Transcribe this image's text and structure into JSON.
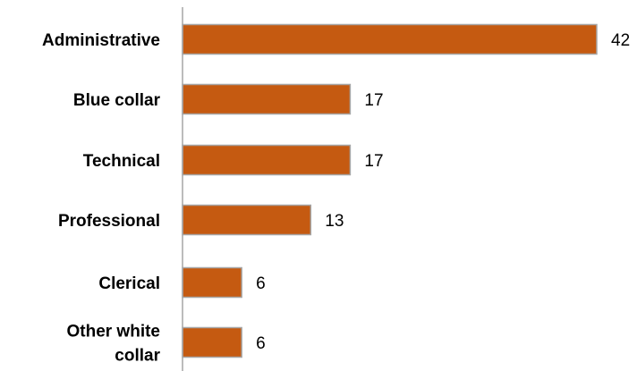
{
  "chart_data": {
    "type": "bar",
    "orientation": "horizontal",
    "title": "",
    "xlabel": "",
    "ylabel": "",
    "categories": [
      "Administrative",
      "Blue collar",
      "Technical",
      "Professional",
      "Clerical",
      "Other white collar"
    ],
    "values": [
      42,
      17,
      17,
      13,
      6,
      6
    ],
    "xlim": [
      0,
      45
    ],
    "grid": false,
    "legend": "none",
    "colors": {
      "bar_fill": "#C55A11",
      "bar_stroke": "#A6A6A6",
      "axis": "#A6A6A6"
    }
  }
}
